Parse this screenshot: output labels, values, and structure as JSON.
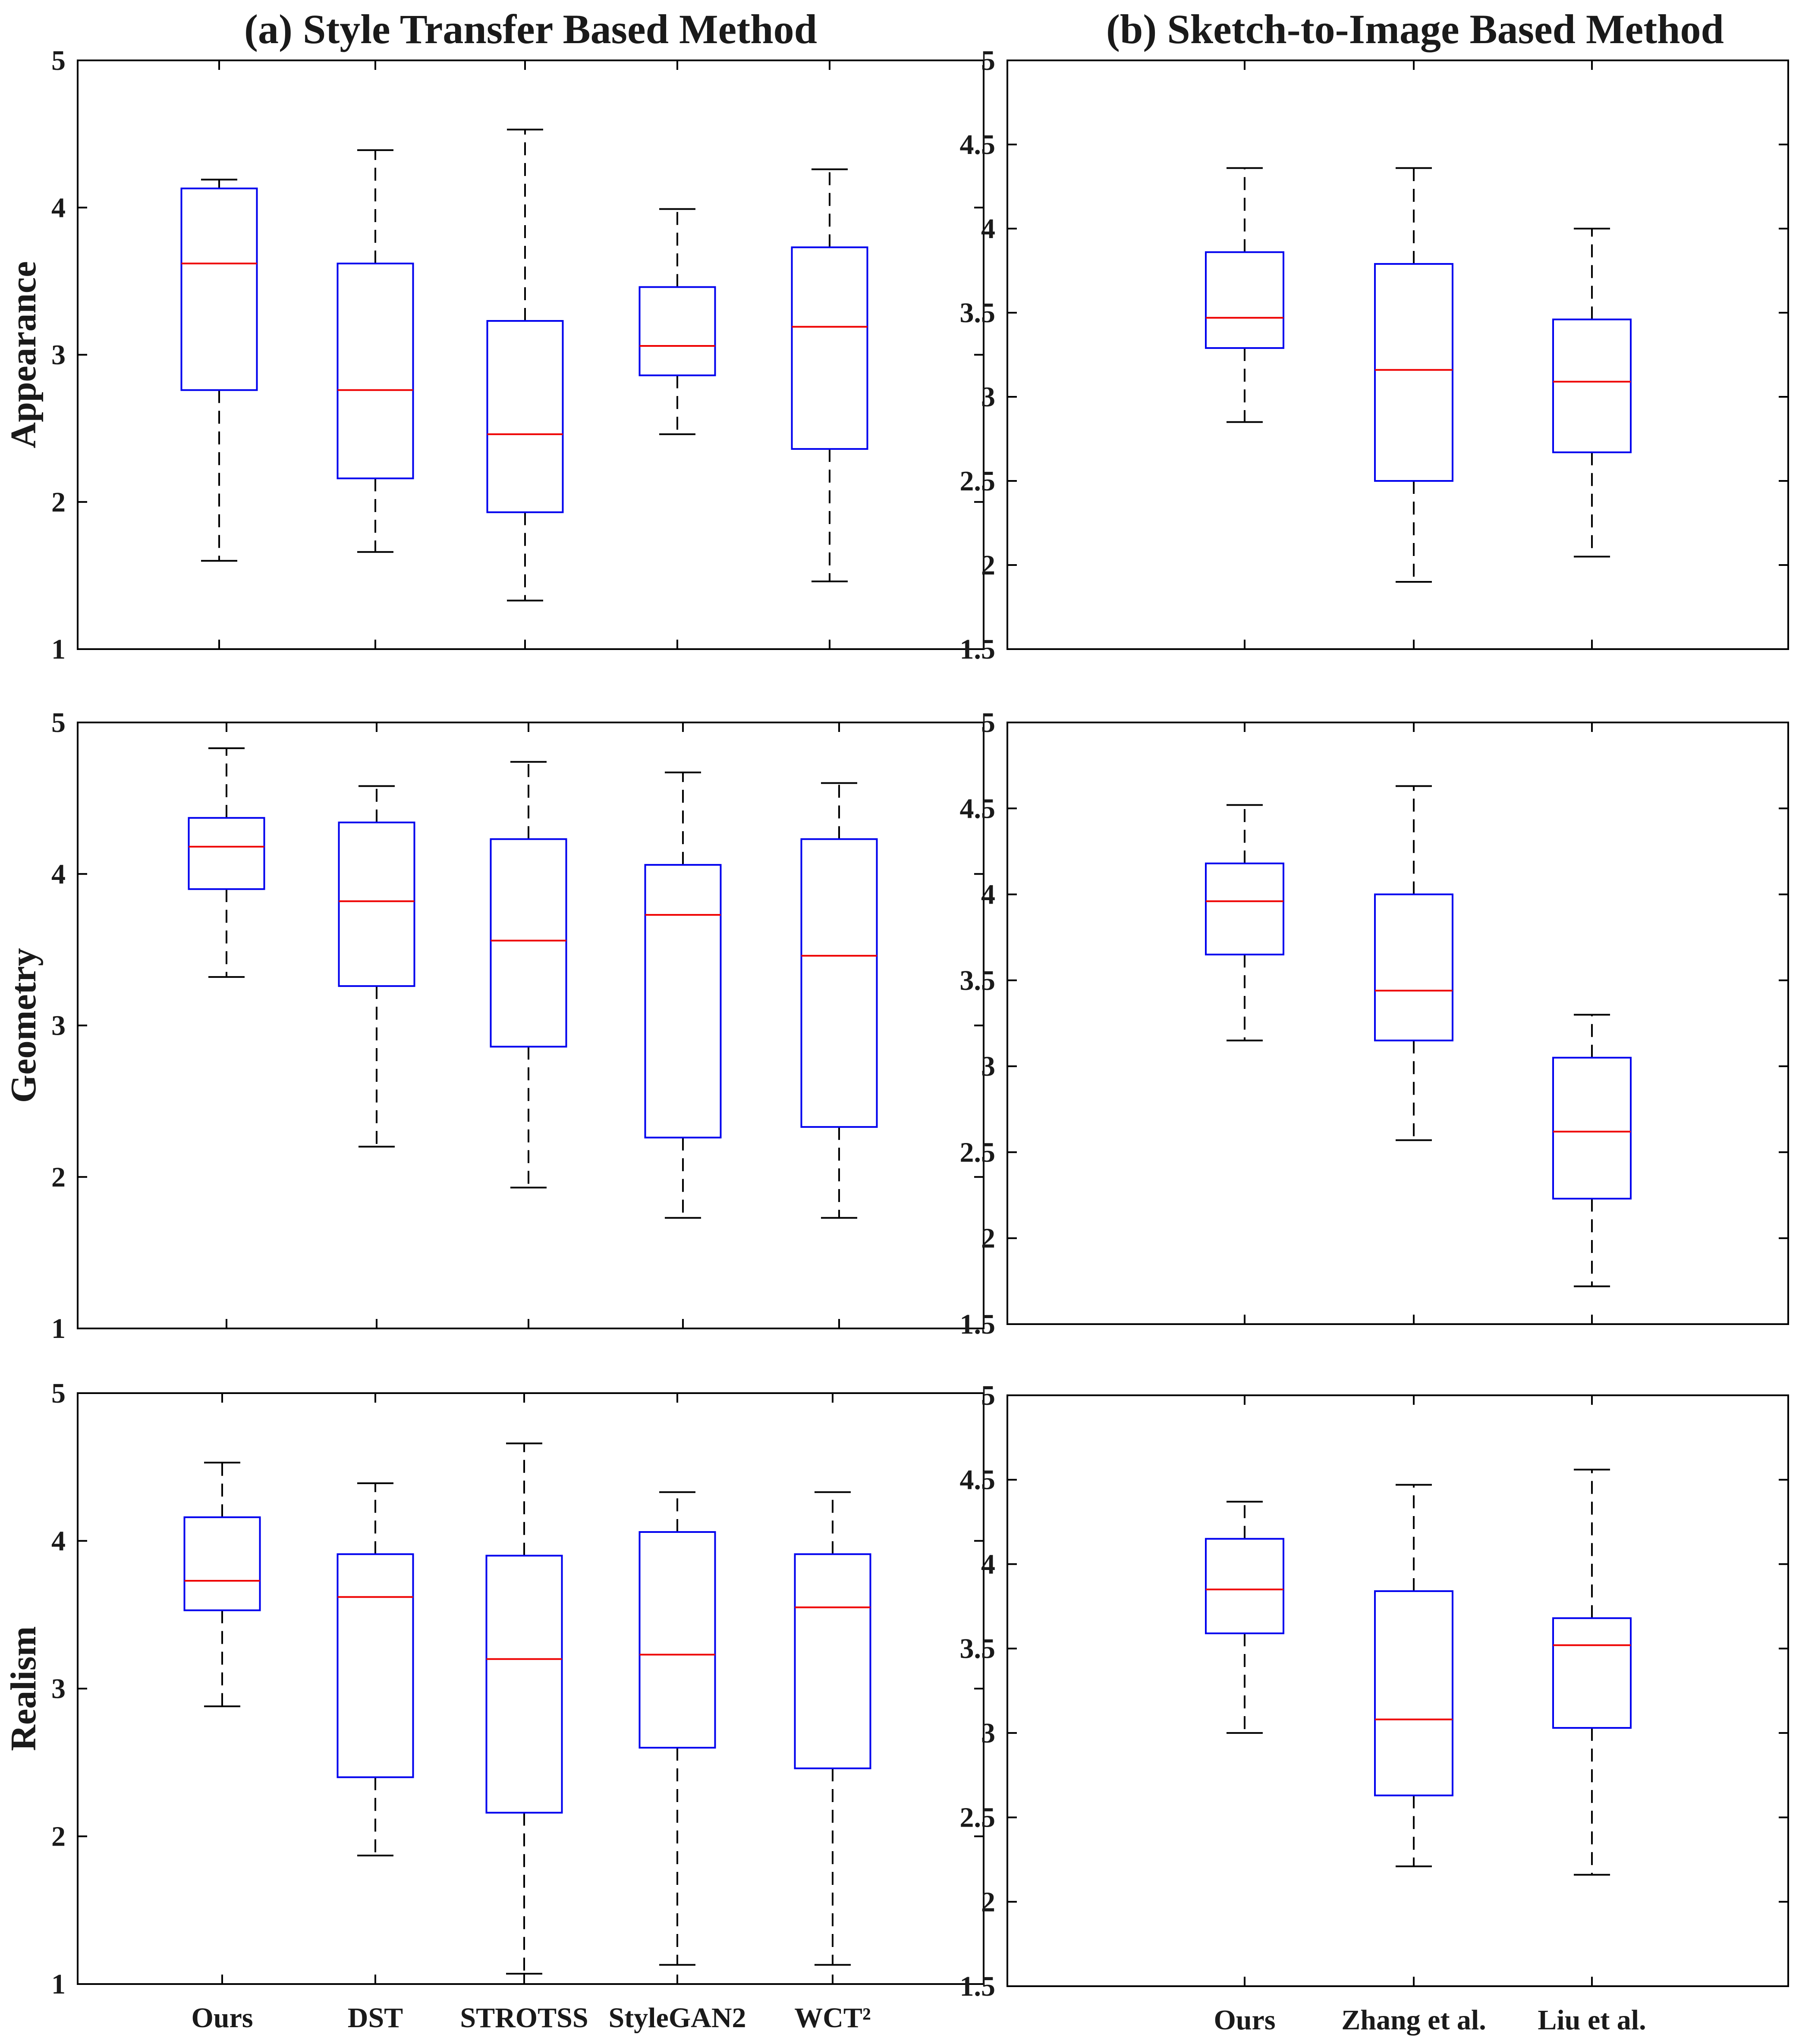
{
  "colors": {
    "box": "#0000ee",
    "median": "#ee0000",
    "whisker": "#000000",
    "axes": "#000000"
  },
  "chart_data": [
    {
      "type": "boxplot",
      "panel": "a-appearance",
      "title": "(a) Style Transfer Based Method",
      "ylabel": "Appearance",
      "xlabel": "",
      "ylim": [
        1,
        5
      ],
      "yticks": [
        "1",
        "2",
        "3",
        "4",
        "5"
      ],
      "categories": [],
      "boxes": [
        {
          "min": 1.6,
          "q1": 2.76,
          "median": 3.62,
          "q3": 4.13,
          "max": 4.19
        },
        {
          "min": 1.66,
          "q1": 2.16,
          "median": 2.76,
          "q3": 3.62,
          "max": 4.39
        },
        {
          "min": 1.33,
          "q1": 1.93,
          "median": 2.46,
          "q3": 3.23,
          "max": 4.53
        },
        {
          "min": 2.46,
          "q1": 2.86,
          "median": 3.06,
          "q3": 3.46,
          "max": 3.99
        },
        {
          "min": 1.46,
          "q1": 2.36,
          "median": 3.19,
          "q3": 3.73,
          "max": 4.26
        }
      ]
    },
    {
      "type": "boxplot",
      "panel": "b-appearance",
      "title": "(b) Sketch-to-Image Based Method",
      "ylabel": "",
      "xlabel": "",
      "ylim": [
        1.5,
        5
      ],
      "yticks": [
        "1.5",
        "2",
        "2.5",
        "3",
        "3.5",
        "4",
        "4.5",
        "5"
      ],
      "categories": [],
      "boxes": [
        {
          "min": 2.85,
          "q1": 3.29,
          "median": 3.47,
          "q3": 3.86,
          "max": 4.36
        },
        {
          "min": 1.9,
          "q1": 2.5,
          "median": 3.16,
          "q3": 3.79,
          "max": 4.36
        },
        {
          "min": 2.05,
          "q1": 2.67,
          "median": 3.09,
          "q3": 3.46,
          "max": 4.0
        }
      ]
    },
    {
      "type": "boxplot",
      "panel": "a-geometry",
      "title": "",
      "ylabel": "Geometry",
      "xlabel": "",
      "ylim": [
        1,
        5
      ],
      "yticks": [
        "1",
        "2",
        "3",
        "4",
        "5"
      ],
      "categories": [],
      "boxes": [
        {
          "min": 3.32,
          "q1": 3.9,
          "median": 4.18,
          "q3": 4.37,
          "max": 4.83
        },
        {
          "min": 2.2,
          "q1": 3.26,
          "median": 3.82,
          "q3": 4.34,
          "max": 4.58
        },
        {
          "min": 1.93,
          "q1": 2.86,
          "median": 3.56,
          "q3": 4.23,
          "max": 4.74
        },
        {
          "min": 1.73,
          "q1": 2.26,
          "median": 3.73,
          "q3": 4.06,
          "max": 4.67
        },
        {
          "min": 1.73,
          "q1": 2.33,
          "median": 3.46,
          "q3": 4.23,
          "max": 4.6
        }
      ]
    },
    {
      "type": "boxplot",
      "panel": "b-geometry",
      "title": "",
      "ylabel": "",
      "xlabel": "",
      "ylim": [
        1.5,
        5
      ],
      "yticks": [
        "1.5",
        "2",
        "2.5",
        "3",
        "3.5",
        "4",
        "4.5",
        "5"
      ],
      "categories": [],
      "boxes": [
        {
          "min": 3.15,
          "q1": 3.65,
          "median": 3.96,
          "q3": 4.18,
          "max": 4.52
        },
        {
          "min": 2.57,
          "q1": 3.15,
          "median": 3.44,
          "q3": 4.0,
          "max": 4.63
        },
        {
          "min": 1.72,
          "q1": 2.23,
          "median": 2.62,
          "q3": 3.05,
          "max": 3.3
        }
      ]
    },
    {
      "type": "boxplot",
      "panel": "a-realism",
      "title": "",
      "ylabel": "Realism",
      "xlabel": "",
      "ylim": [
        1,
        5
      ],
      "yticks": [
        "1",
        "2",
        "3",
        "4",
        "5"
      ],
      "categories": [
        "Ours",
        "DST",
        "STROTSS",
        "StyleGAN2",
        "WCT²"
      ],
      "boxes": [
        {
          "min": 2.88,
          "q1": 3.53,
          "median": 3.73,
          "q3": 4.16,
          "max": 4.53
        },
        {
          "min": 1.87,
          "q1": 2.4,
          "median": 3.62,
          "q3": 3.91,
          "max": 4.39
        },
        {
          "min": 1.07,
          "q1": 2.16,
          "median": 3.2,
          "q3": 3.9,
          "max": 4.66
        },
        {
          "min": 1.13,
          "q1": 2.6,
          "median": 3.23,
          "q3": 4.06,
          "max": 4.33
        },
        {
          "min": 1.13,
          "q1": 2.46,
          "median": 3.55,
          "q3": 3.91,
          "max": 4.33
        }
      ]
    },
    {
      "type": "boxplot",
      "panel": "b-realism",
      "title": "",
      "ylabel": "",
      "xlabel": "",
      "ylim": [
        1.5,
        5
      ],
      "yticks": [
        "1.5",
        "2",
        "2.5",
        "3",
        "3.5",
        "4",
        "4.5",
        "5"
      ],
      "categories": [
        "Ours",
        "Zhang et al.",
        "Liu et al."
      ],
      "boxes": [
        {
          "min": 3.0,
          "q1": 3.59,
          "median": 3.85,
          "q3": 4.15,
          "max": 4.37
        },
        {
          "min": 2.21,
          "q1": 2.63,
          "median": 3.08,
          "q3": 3.84,
          "max": 4.47
        },
        {
          "min": 2.16,
          "q1": 3.03,
          "median": 3.52,
          "q3": 3.68,
          "max": 4.56
        }
      ]
    }
  ]
}
